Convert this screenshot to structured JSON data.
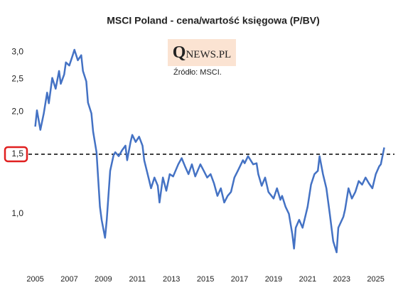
{
  "chart_data": {
    "type": "line",
    "title": "MSCI Poland - cena/wartość księgowa (P/BV)",
    "logo": "QNEWS.PL",
    "source": "Źródło: MSCI.",
    "log_scale_y": true,
    "grid": false,
    "reference_line": 1.5,
    "xlim": [
      2004.6,
      2026.1
    ],
    "xticks": [
      2005,
      2007,
      2009,
      2011,
      2013,
      2015,
      2017,
      2019,
      2021,
      2023,
      2025
    ],
    "ylim": [
      0.666,
      3.28
    ],
    "yticks": [
      {
        "value": 1.0,
        "label": "1,0"
      },
      {
        "value": 1.5,
        "label": "1,5"
      },
      {
        "value": 2.0,
        "label": "2,0"
      },
      {
        "value": 2.5,
        "label": "2,5"
      },
      {
        "value": 3.0,
        "label": "3,0"
      }
    ],
    "series": [
      {
        "name": "P/BV",
        "color": "#4472c4",
        "x": [
          2005.0,
          2005.1,
          2005.3,
          2005.5,
          2005.7,
          2005.8,
          2006.0,
          2006.2,
          2006.4,
          2006.5,
          2006.7,
          2006.8,
          2007.0,
          2007.2,
          2007.3,
          2007.5,
          2007.7,
          2007.8,
          2008.0,
          2008.1,
          2008.3,
          2008.4,
          2008.6,
          2008.8,
          2008.9,
          2009.1,
          2009.2,
          2009.4,
          2009.6,
          2009.7,
          2009.9,
          2010.1,
          2010.3,
          2010.4,
          2010.6,
          2010.7,
          2010.9,
          2011.1,
          2011.3,
          2011.4,
          2011.7,
          2011.8,
          2012.0,
          2012.2,
          2012.3,
          2012.5,
          2012.7,
          2012.9,
          2013.1,
          2013.4,
          2013.6,
          2013.8,
          2014.0,
          2014.2,
          2014.4,
          2014.7,
          2014.9,
          2015.1,
          2015.3,
          2015.5,
          2015.7,
          2015.9,
          2016.1,
          2016.3,
          2016.5,
          2016.7,
          2016.9,
          2017.2,
          2017.3,
          2017.5,
          2017.8,
          2018.0,
          2018.1,
          2018.3,
          2018.5,
          2018.7,
          2019.0,
          2019.2,
          2019.4,
          2019.5,
          2019.7,
          2019.9,
          2020.1,
          2020.2,
          2020.3,
          2020.5,
          2020.7,
          2020.9,
          2021.0,
          2021.2,
          2021.4,
          2021.6,
          2021.7,
          2021.9,
          2022.1,
          2022.3,
          2022.5,
          2022.7,
          2022.8,
          2023.1,
          2023.2,
          2023.4,
          2023.6,
          2023.8,
          2024.0,
          2024.2,
          2024.4,
          2024.6,
          2024.8,
          2025.0,
          2025.2,
          2025.3,
          2025.5
        ],
        "values": [
          1.81,
          2.02,
          1.77,
          1.98,
          2.28,
          2.12,
          2.52,
          2.34,
          2.64,
          2.42,
          2.58,
          2.8,
          2.74,
          2.94,
          3.05,
          2.84,
          2.94,
          2.64,
          2.46,
          2.13,
          1.98,
          1.75,
          1.52,
          1.05,
          0.96,
          0.85,
          0.96,
          1.34,
          1.49,
          1.52,
          1.48,
          1.54,
          1.59,
          1.44,
          1.63,
          1.71,
          1.63,
          1.69,
          1.59,
          1.44,
          1.25,
          1.19,
          1.28,
          1.21,
          1.08,
          1.28,
          1.17,
          1.31,
          1.29,
          1.4,
          1.46,
          1.38,
          1.31,
          1.4,
          1.29,
          1.4,
          1.34,
          1.28,
          1.31,
          1.23,
          1.13,
          1.19,
          1.08,
          1.13,
          1.16,
          1.28,
          1.34,
          1.44,
          1.41,
          1.48,
          1.4,
          1.41,
          1.31,
          1.21,
          1.28,
          1.16,
          1.11,
          1.19,
          1.1,
          1.13,
          1.05,
          1.0,
          0.87,
          0.79,
          0.91,
          0.96,
          0.91,
          1.0,
          1.05,
          1.22,
          1.31,
          1.34,
          1.48,
          1.31,
          1.19,
          1.0,
          0.83,
          0.77,
          0.91,
          0.98,
          1.03,
          1.19,
          1.11,
          1.16,
          1.25,
          1.22,
          1.28,
          1.23,
          1.19,
          1.31,
          1.38,
          1.4,
          1.57
        ]
      }
    ]
  }
}
